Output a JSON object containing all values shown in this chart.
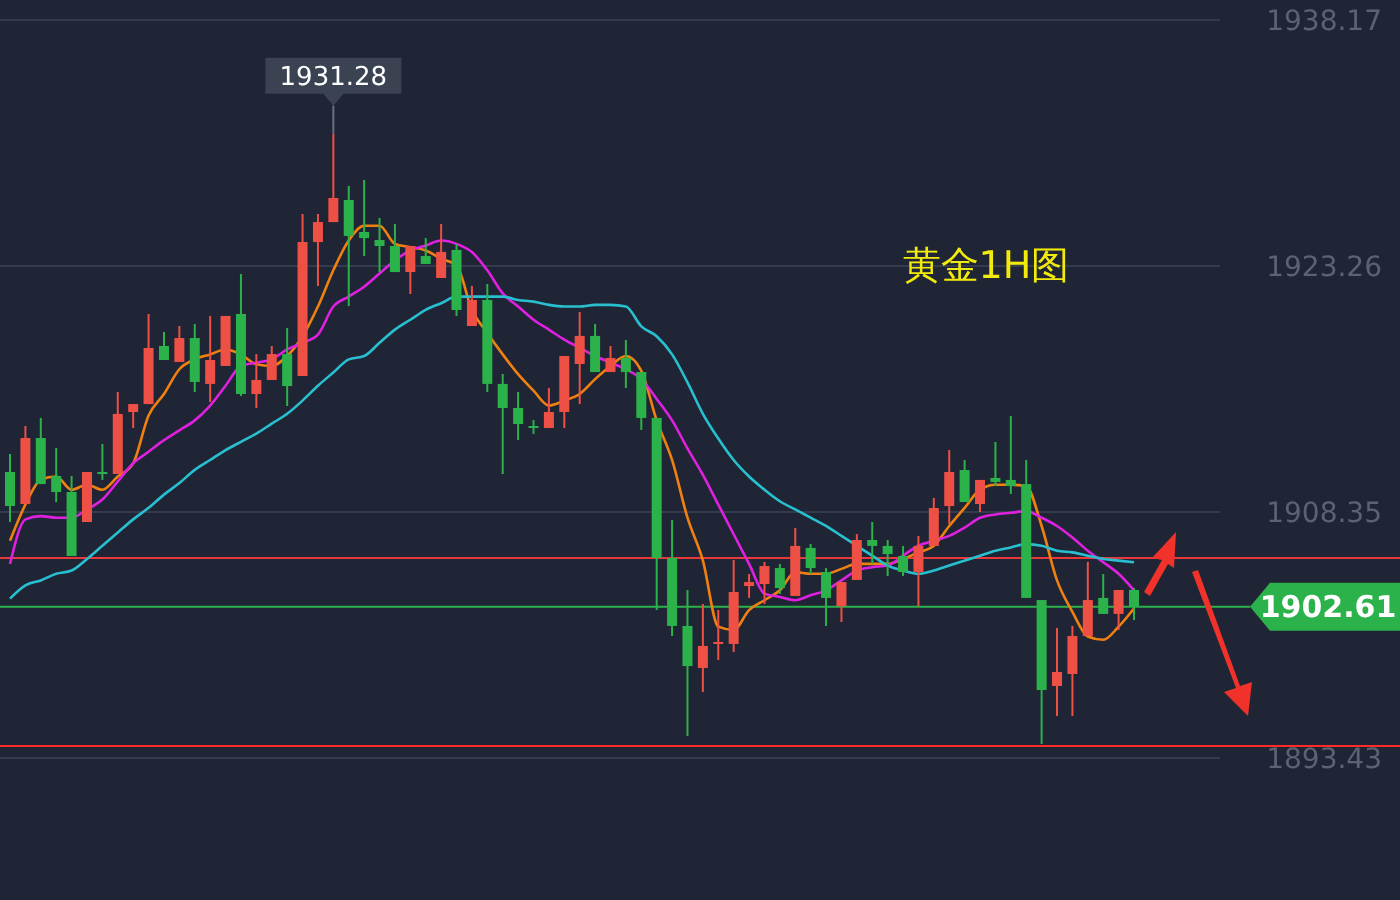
{
  "chart_data": {
    "type": "candlestick",
    "title": "黄金1H图",
    "categories": [
      null,
      null,
      null,
      null,
      null,
      null,
      null,
      null,
      null,
      null,
      null,
      null,
      null,
      null,
      null,
      null,
      null,
      null,
      null,
      null,
      null,
      null,
      null,
      null,
      null,
      null,
      null,
      null,
      null,
      null,
      null,
      null,
      null,
      null,
      null,
      null,
      null,
      null,
      null,
      null,
      null,
      null,
      null,
      null,
      null,
      null,
      null,
      null,
      null,
      null,
      null,
      null,
      null,
      null,
      null,
      null,
      null,
      null,
      null,
      null,
      null,
      null,
      null,
      null,
      null,
      null,
      null,
      null,
      null,
      null,
      null,
      null,
      null,
      null
    ],
    "ohlc": [
      [
        1910.77,
        1911.86,
        1907.74,
        1908.71
      ],
      [
        1908.83,
        1913.56,
        1908.83,
        1912.83
      ],
      [
        1912.83,
        1914.05,
        1910.04,
        1910.04
      ],
      [
        1910.53,
        1912.23,
        1908.95,
        1909.56
      ],
      [
        1909.56,
        1910.53,
        1905.68,
        1905.68
      ],
      [
        1907.74,
        1910.77,
        1907.74,
        1910.77
      ],
      [
        1910.77,
        1912.47,
        1910.29,
        1910.65
      ],
      [
        1910.65,
        1915.62,
        1910.65,
        1914.29
      ],
      [
        1914.41,
        1914.89,
        1913.44,
        1914.89
      ],
      [
        1914.89,
        1920.35,
        1914.89,
        1918.29
      ],
      [
        1918.41,
        1919.26,
        1917.56,
        1917.56
      ],
      [
        1917.44,
        1919.62,
        1917.44,
        1918.89
      ],
      [
        1918.89,
        1919.74,
        1915.62,
        1916.23
      ],
      [
        1916.11,
        1920.23,
        1915.01,
        1917.56
      ],
      [
        1917.2,
        1920.23,
        1917.2,
        1920.23
      ],
      [
        1920.35,
        1922.77,
        1915.38,
        1915.5
      ],
      [
        1915.5,
        1917.92,
        1914.65,
        1916.35
      ],
      [
        1916.35,
        1918.41,
        1916.35,
        1917.92
      ],
      [
        1917.92,
        1919.5,
        1914.77,
        1915.98
      ],
      [
        1916.59,
        1926.41,
        1916.59,
        1924.71
      ],
      [
        1924.71,
        1926.41,
        1922.05,
        1925.92
      ],
      [
        1925.92,
        1931.28,
        1925.92,
        1927.38
      ],
      [
        1927.26,
        1928.11,
        1920.83,
        1925.08
      ],
      [
        1925.32,
        1928.47,
        1923.86,
        1924.95
      ],
      [
        1924.83,
        1926.17,
        1922.89,
        1924.47
      ],
      [
        1924.47,
        1925.8,
        1922.89,
        1922.89
      ],
      [
        1922.89,
        1924.47,
        1921.56,
        1924.47
      ],
      [
        1923.86,
        1924.95,
        1923.38,
        1923.38
      ],
      [
        1922.53,
        1925.8,
        1922.53,
        1924.11
      ],
      [
        1924.23,
        1924.59,
        1920.23,
        1920.59
      ],
      [
        1919.62,
        1922.05,
        1919.62,
        1921.2
      ],
      [
        1921.2,
        1922.17,
        1915.62,
        1916.11
      ],
      [
        1916.11,
        1916.71,
        1910.65,
        1914.65
      ],
      [
        1914.65,
        1915.62,
        1912.71,
        1913.68
      ],
      [
        1913.56,
        1913.92,
        1913.08,
        1913.5
      ],
      [
        1913.44,
        1915.86,
        1913.44,
        1914.41
      ],
      [
        1914.41,
        1917.8,
        1913.44,
        1917.8
      ],
      [
        1917.32,
        1920.47,
        1914.89,
        1919.02
      ],
      [
        1919.02,
        1919.74,
        1916.83,
        1916.83
      ],
      [
        1916.83,
        1918.41,
        1916.83,
        1917.68
      ],
      [
        1917.68,
        1918.77,
        1915.86,
        1916.83
      ],
      [
        1916.83,
        1916.83,
        1913.32,
        1914.05
      ],
      [
        1914.05,
        1914.05,
        1902.41,
        1905.56
      ],
      [
        1905.56,
        1907.86,
        1900.83,
        1901.44
      ],
      [
        1901.44,
        1903.62,
        1894.77,
        1899.01
      ],
      [
        1898.89,
        1902.77,
        1897.44,
        1900.23
      ],
      [
        1900.35,
        1902.41,
        1899.38,
        1900.47
      ],
      [
        1900.35,
        1905.44,
        1899.86,
        1903.5
      ],
      [
        1903.86,
        1904.59,
        1903.14,
        1904.1
      ],
      [
        1903.98,
        1905.32,
        1902.77,
        1905.07
      ],
      [
        1904.95,
        1905.2,
        1903.38,
        1903.74
      ],
      [
        1903.26,
        1907.38,
        1903.26,
        1906.29
      ],
      [
        1906.17,
        1906.41,
        1904.59,
        1904.95
      ],
      [
        1904.71,
        1904.95,
        1901.44,
        1903.14
      ],
      [
        1902.65,
        1904.1,
        1901.68,
        1904.1
      ],
      [
        1904.23,
        1907.01,
        1904.23,
        1906.65
      ],
      [
        1906.65,
        1907.74,
        1905.2,
        1906.29
      ],
      [
        1906.29,
        1906.65,
        1904.47,
        1905.8
      ],
      [
        1905.68,
        1906.29,
        1904.47,
        1904.71
      ],
      [
        1904.71,
        1906.89,
        1902.65,
        1906.29
      ],
      [
        1906.29,
        1909.2,
        1906.29,
        1908.59
      ],
      [
        1908.71,
        1912.11,
        1907.62,
        1910.77
      ],
      [
        1910.89,
        1911.5,
        1908.95,
        1908.95
      ],
      [
        1908.83,
        1910.29,
        1908.35,
        1910.29
      ],
      [
        1910.41,
        1912.59,
        1909.92,
        1910.17
      ],
      [
        1910.29,
        1914.17,
        1909.44,
        1909.92
      ],
      [
        1910.04,
        1911.5,
        1903.14,
        1903.14
      ],
      [
        1903.01,
        1903.01,
        1894.29,
        1897.56
      ],
      [
        1897.8,
        1901.32,
        1895.98,
        1898.65
      ],
      [
        1898.53,
        1901.44,
        1895.98,
        1900.83
      ],
      [
        1900.83,
        1905.32,
        1900.83,
        1903.01
      ],
      [
        1903.14,
        1904.59,
        1902.17,
        1902.17
      ],
      [
        1902.17,
        1903.62,
        1901.2,
        1903.62
      ],
      [
        1903.62,
        1903.74,
        1901.8,
        1902.61
      ]
    ],
    "colors": [
      "#2cb24a",
      "#ef5046",
      "#2cb24a",
      "#2cb24a",
      "#2cb24a",
      "#ef5046",
      "#2cb24a",
      "#ef5046",
      "#ef5046",
      "#ef5046",
      "#2cb24a",
      "#ef5046",
      "#2cb24a",
      "#ef5046",
      "#ef5046",
      "#2cb24a",
      "#ef5046",
      "#ef5046",
      "#2cb24a",
      "#ef5046",
      "#ef5046",
      "#ef5046",
      "#2cb24a",
      "#2cb24a",
      "#2cb24a",
      "#2cb24a",
      "#ef5046",
      "#2cb24a",
      "#ef5046",
      "#2cb24a",
      "#ef5046",
      "#2cb24a",
      "#2cb24a",
      "#2cb24a",
      "#2cb24a",
      "#ef5046",
      "#ef5046",
      "#ef5046",
      "#2cb24a",
      "#ef5046",
      "#2cb24a",
      "#2cb24a",
      "#2cb24a",
      "#2cb24a",
      "#2cb24a",
      "#ef5046",
      "#ef5046",
      "#ef5046",
      "#ef5046",
      "#ef5046",
      "#2cb24a",
      "#ef5046",
      "#2cb24a",
      "#2cb24a",
      "#ef5046",
      "#ef5046",
      "#2cb24a",
      "#2cb24a",
      "#2cb24a",
      "#ef5046",
      "#ef5046",
      "#ef5046",
      "#2cb24a",
      "#ef5046",
      "#2cb24a",
      "#2cb24a",
      "#2cb24a",
      "#2cb24a",
      "#ef5046",
      "#ef5046",
      "#ef5046",
      "#2cb24a",
      "#ef5046",
      "#2cb24a"
    ],
    "series": [
      {
        "type": "line",
        "color": "#f08010",
        "values": [
          1906.6,
          1908.8,
          1910.3,
          1910.5,
          1909.7,
          1910.0,
          1909.7,
          1910.5,
          1911.3,
          1914.2,
          1915.5,
          1917.0,
          1917.6,
          1917.9,
          1918.2,
          1917.9,
          1917.3,
          1917.2,
          1917.8,
          1919.0,
          1920.8,
          1923.0,
          1924.8,
          1925.7,
          1925.7,
          1924.6,
          1924.4,
          1924.2,
          1923.7,
          1923.3,
          1920.6,
          1919.2,
          1917.9,
          1916.7,
          1915.7,
          1914.8,
          1915.1,
          1915.5,
          1916.4,
          1917.2,
          1917.8,
          1916.9,
          1913.9,
          1911.5,
          1908.0,
          1905.4,
          1901.4,
          1901.2,
          1902.4,
          1903.0,
          1903.6,
          1904.7,
          1904.6,
          1904.6,
          1904.9,
          1905.2,
          1905.2,
          1905.2,
          1905.5,
          1905.9,
          1906.3,
          1907.5,
          1908.6,
          1909.7,
          1910.0,
          1910.0,
          1909.9,
          1907.5,
          1904.2,
          1902.3,
          1900.8,
          1900.6,
          1901.4,
          1902.5
        ]
      },
      {
        "type": "line",
        "color": "#e020e0",
        "values": [
          1905.2,
          1907.9,
          1908.1,
          1908.0,
          1908.0,
          1908.5,
          1909.1,
          1910.2,
          1911.3,
          1912.0,
          1912.7,
          1913.3,
          1913.9,
          1914.8,
          1916.0,
          1917.2,
          1917.4,
          1917.6,
          1918.2,
          1918.6,
          1919.1,
          1920.8,
          1921.4,
          1922.0,
          1922.8,
          1923.6,
          1924.2,
          1924.5,
          1924.8,
          1924.6,
          1924.1,
          1923.0,
          1921.6,
          1920.8,
          1920.0,
          1919.4,
          1918.8,
          1918.3,
          1917.8,
          1917.4,
          1917.0,
          1916.4,
          1915.2,
          1913.9,
          1912.2,
          1910.6,
          1908.8,
          1907.0,
          1905.2,
          1903.4,
          1903.2,
          1903.0,
          1903.3,
          1903.6,
          1904.2,
          1904.8,
          1905.0,
          1905.1,
          1905.7,
          1906.3,
          1906.6,
          1906.9,
          1907.4,
          1908.0,
          1908.2,
          1908.3,
          1908.4,
          1908.0,
          1907.5,
          1906.8,
          1906.0,
          1905.3,
          1904.6,
          1903.6
        ]
      },
      {
        "type": "line",
        "color": "#28c0d0",
        "values": [
          1903.1,
          1903.9,
          1904.2,
          1904.6,
          1904.8,
          1905.5,
          1906.3,
          1907.1,
          1907.9,
          1908.6,
          1909.4,
          1910.1,
          1910.9,
          1911.5,
          1912.1,
          1912.6,
          1913.1,
          1913.7,
          1914.3,
          1915.1,
          1916.0,
          1916.8,
          1917.6,
          1917.8,
          1918.6,
          1919.4,
          1920.0,
          1920.6,
          1921.0,
          1921.4,
          1921.4,
          1921.4,
          1921.4,
          1921.2,
          1921.1,
          1920.9,
          1920.8,
          1920.8,
          1920.9,
          1920.9,
          1920.8,
          1919.6,
          1919.0,
          1917.9,
          1916.2,
          1914.3,
          1912.8,
          1911.5,
          1910.5,
          1909.7,
          1909.0,
          1908.5,
          1908.0,
          1907.5,
          1906.9,
          1906.3,
          1905.7,
          1905.1,
          1904.8,
          1904.6,
          1904.8,
          1905.1,
          1905.4,
          1905.7,
          1906.0,
          1906.2,
          1906.4,
          1906.3,
          1906.0,
          1905.9,
          1905.7,
          1905.5,
          1905.4,
          1905.3
        ]
      }
    ],
    "ylim": [
      1884.83,
      1939.38
    ],
    "yticks": [
      1893.43,
      1908.35,
      1923.26,
      1938.17
    ],
    "grid": "y",
    "tick_labels": "y",
    "ref_lines": [
      {
        "axis": "y",
        "value": 1902.61,
        "label": "1902.61",
        "color": "#2cb24a"
      },
      {
        "axis": "y",
        "value": 1905.56,
        "color": "#e83a3a"
      },
      {
        "axis": "y",
        "value": 1894.16,
        "color": "#ff2a2a"
      }
    ],
    "annotations": [
      {
        "text": "1931.28",
        "y": 1931.28
      }
    ]
  }
}
